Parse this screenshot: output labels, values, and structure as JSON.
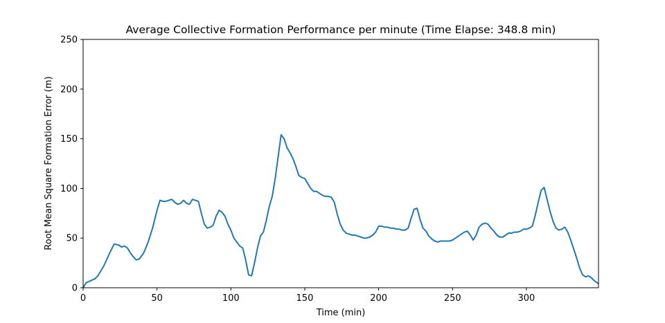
{
  "chart_data": {
    "type": "line",
    "title": "Average Collective Formation Performance per minute (Time Elapse: 348.8 min)",
    "xlabel": "Time (min)",
    "ylabel": "Root Mean Square Formation Error (m)",
    "xlim": [
      0,
      348.8
    ],
    "ylim": [
      0,
      250
    ],
    "xticks": [
      0,
      50,
      100,
      150,
      200,
      250,
      300
    ],
    "yticks": [
      0,
      50,
      100,
      150,
      200,
      250
    ],
    "grid": false,
    "line_color": "#1f77b4",
    "series": [
      {
        "x": [
          0,
          2,
          5,
          8,
          10,
          14,
          18,
          21,
          24,
          26,
          28,
          30,
          32,
          34,
          36,
          38,
          41,
          44,
          47,
          50,
          52,
          54,
          56,
          58,
          60,
          62,
          64,
          66,
          68,
          70,
          72,
          74,
          76,
          78,
          80,
          82,
          84,
          86,
          88,
          90,
          92,
          94,
          96,
          98,
          100,
          102,
          104,
          106,
          108,
          110,
          112,
          114,
          116,
          118,
          120,
          122,
          124,
          126,
          128,
          130,
          132,
          134,
          136,
          138,
          140,
          142,
          144,
          146,
          148,
          150,
          152,
          154,
          156,
          158,
          160,
          162,
          164,
          166,
          168,
          170,
          172,
          174,
          176,
          178,
          180,
          182,
          184,
          186,
          188,
          190,
          192,
          194,
          196,
          198,
          200,
          202,
          204,
          206,
          208,
          210,
          212,
          214,
          216,
          218,
          220,
          222,
          224,
          226,
          228,
          230,
          232,
          234,
          236,
          238,
          240,
          242,
          244,
          246,
          248,
          250,
          252,
          254,
          256,
          258,
          260,
          262,
          264,
          266,
          268,
          270,
          272,
          274,
          276,
          278,
          280,
          282,
          284,
          286,
          288,
          290,
          292,
          294,
          296,
          298,
          300,
          302,
          304,
          306,
          308,
          310,
          312,
          314,
          316,
          318,
          320,
          322,
          324,
          326,
          328,
          330,
          332,
          334,
          336,
          338,
          340,
          342,
          344,
          346,
          348.8
        ],
        "y": [
          0,
          5,
          7,
          9,
          12,
          22,
          35,
          44,
          43,
          41,
          42,
          40,
          35,
          31,
          28,
          29,
          35,
          46,
          60,
          78,
          88,
          87,
          87,
          88,
          89,
          86,
          84,
          85,
          88,
          85,
          84,
          89,
          88,
          87,
          75,
          64,
          60,
          61,
          63,
          72,
          78,
          76,
          72,
          64,
          58,
          50,
          46,
          42,
          40,
          28,
          13,
          12,
          25,
          40,
          52,
          56,
          68,
          82,
          92,
          110,
          132,
          154,
          150,
          141,
          136,
          130,
          122,
          113,
          111,
          110,
          105,
          100,
          97,
          97,
          95,
          93,
          92,
          92,
          91,
          86,
          74,
          64,
          58,
          55,
          54,
          53,
          53,
          52,
          51,
          50,
          50,
          51,
          53,
          56,
          62,
          62,
          61,
          61,
          60,
          60,
          59,
          59,
          58,
          58,
          60,
          70,
          79,
          80,
          69,
          60,
          57,
          52,
          49,
          47,
          46,
          47,
          47,
          47,
          47,
          48,
          50,
          52,
          54,
          56,
          57,
          53,
          48,
          53,
          61,
          64,
          65,
          64,
          60,
          57,
          53,
          51,
          51,
          53,
          55,
          55,
          56,
          56,
          57,
          59,
          59,
          60,
          62,
          73,
          86,
          98,
          101,
          89,
          77,
          67,
          60,
          58,
          59,
          61,
          56,
          48,
          39,
          30,
          20,
          13,
          11,
          12,
          10,
          7,
          4
        ]
      }
    ]
  }
}
